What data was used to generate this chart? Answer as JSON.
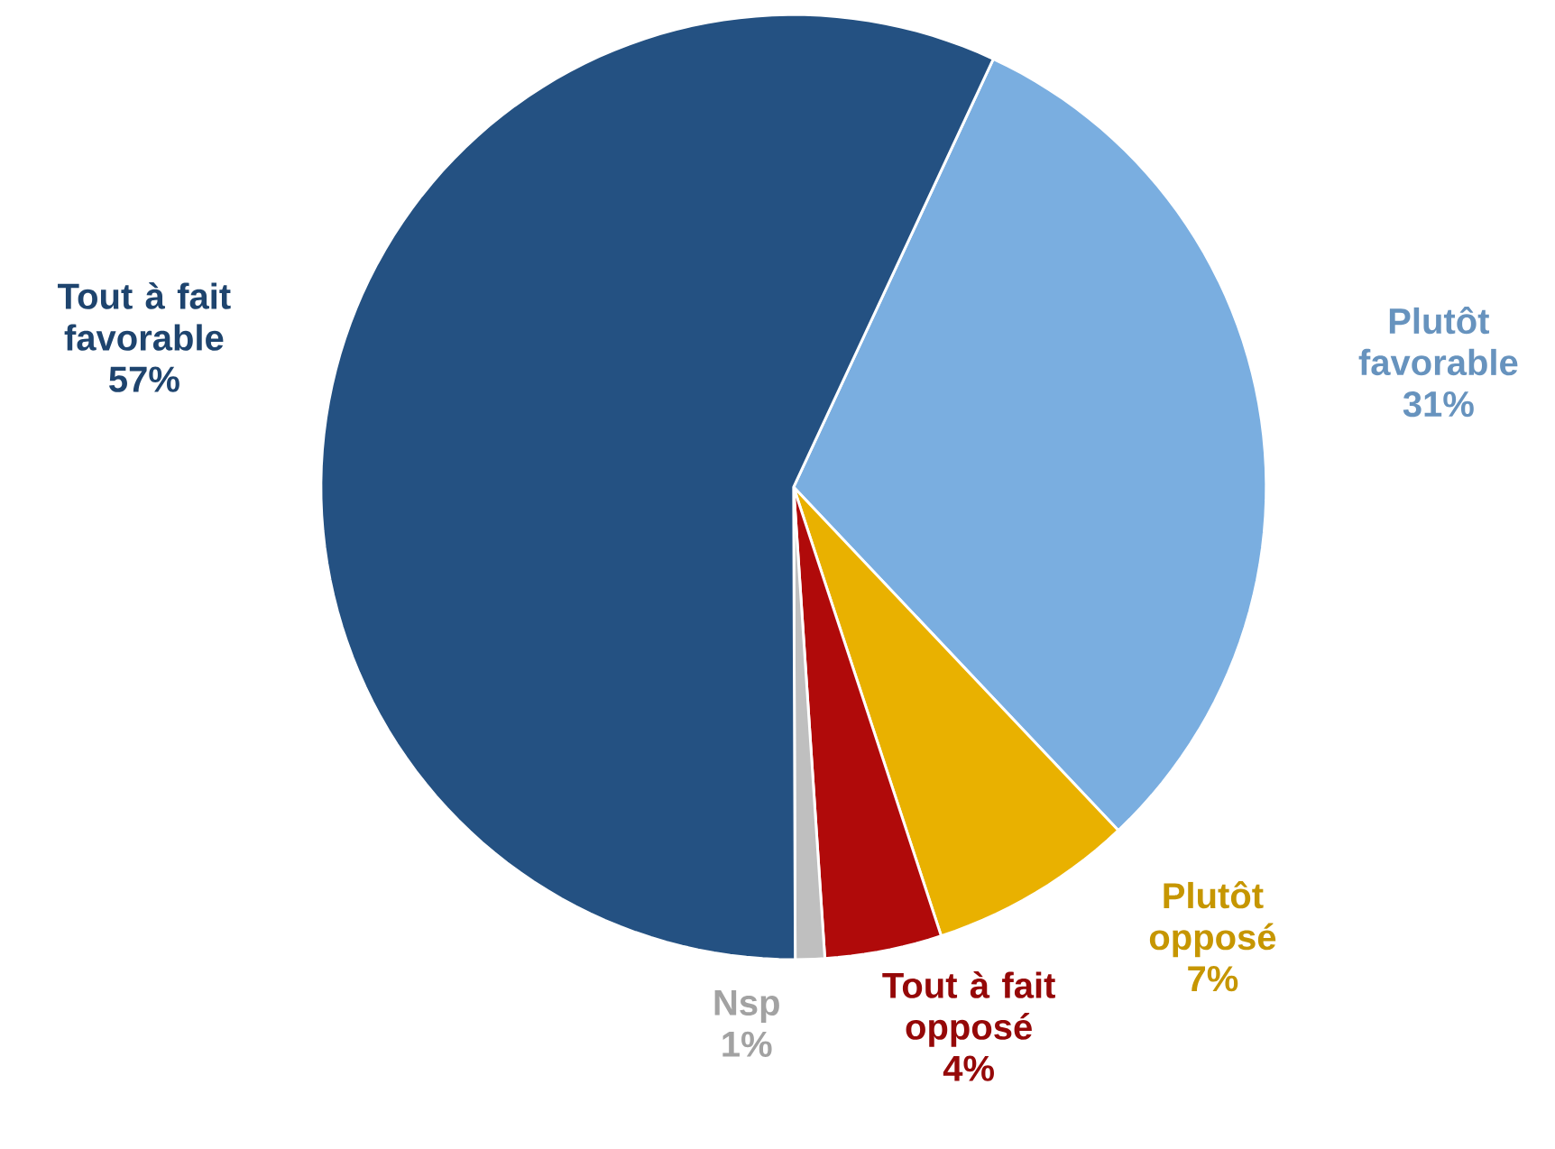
{
  "chart_data": {
    "type": "pie",
    "categories": [
      "Plutôt favorable",
      "Plutôt opposé",
      "Tout à fait opposé",
      "Nsp",
      "Tout à fait favorable"
    ],
    "values": [
      31,
      7,
      4,
      1,
      57
    ],
    "value_labels": [
      "31%",
      "7%",
      "4%",
      "1%",
      "57%"
    ],
    "colors": [
      "#7aaee0",
      "#e9b100",
      "#b00a0a",
      "#bfbfbf",
      "#245182"
    ]
  }
}
